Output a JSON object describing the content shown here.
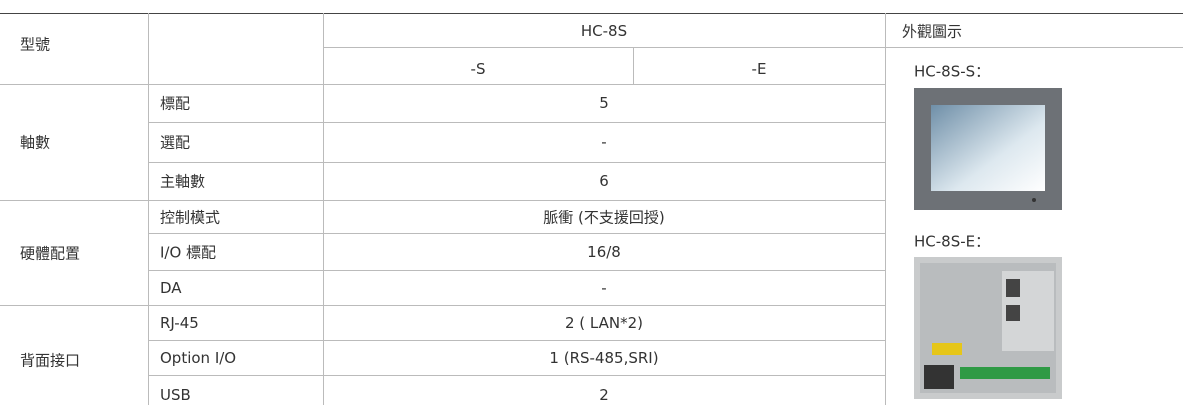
{
  "table": {
    "header": {
      "model_label": "型號",
      "product": "HC-8S",
      "variants": [
        "-S",
        "-E"
      ],
      "appearance": "外觀圖示"
    },
    "groups": [
      {
        "name": "軸數",
        "rows": [
          [
            "標配",
            "5"
          ],
          [
            "選配",
            "-"
          ],
          [
            "主軸數",
            "6"
          ]
        ]
      },
      {
        "name": "硬體配置",
        "rows": [
          [
            "控制模式",
            "脈衝 (不支援回授)"
          ],
          [
            "I/O 標配",
            "16/8"
          ],
          [
            "DA",
            "-"
          ]
        ]
      },
      {
        "name": "背面接口",
        "rows": [
          [
            "RJ-45",
            "2 ( LAN*2)"
          ],
          [
            "Option I/O",
            "1 (RS-485,SRI)"
          ],
          [
            "USB",
            "2"
          ]
        ]
      }
    ],
    "images": [
      {
        "label": "HC-8S-S："
      },
      {
        "label": "HC-8S-E："
      }
    ]
  }
}
